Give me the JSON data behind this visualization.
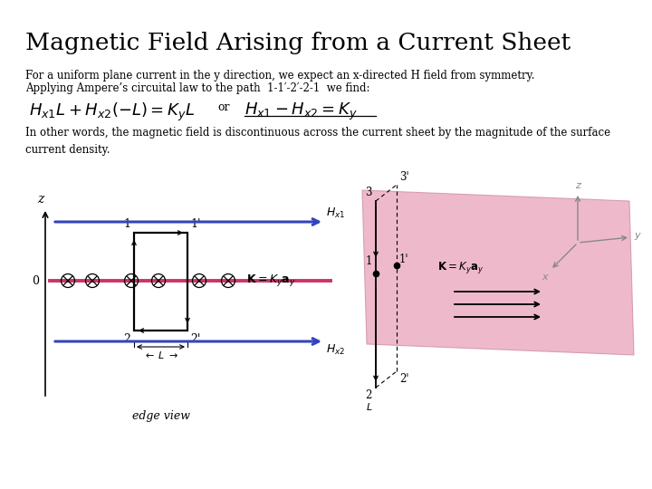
{
  "title": "Magnetic Field Arising from a Current Sheet",
  "bg_color": "#ffffff",
  "title_fontsize": 19,
  "text1": "For a uniform plane current in the y direction, we expect an x-directed H field from symmetry.",
  "text2": "Applying Ampere’s circuital law to the path  1-1′-2′-2-1  we find:",
  "text3": "In other words, the magnetic field is discontinuous across the current sheet by the magnitude of the surface\ncurrent density.",
  "pink_color": "#e8a0b8",
  "blue_color": "#3344bb",
  "red_color": "#cc3366",
  "gray_color": "#888888"
}
